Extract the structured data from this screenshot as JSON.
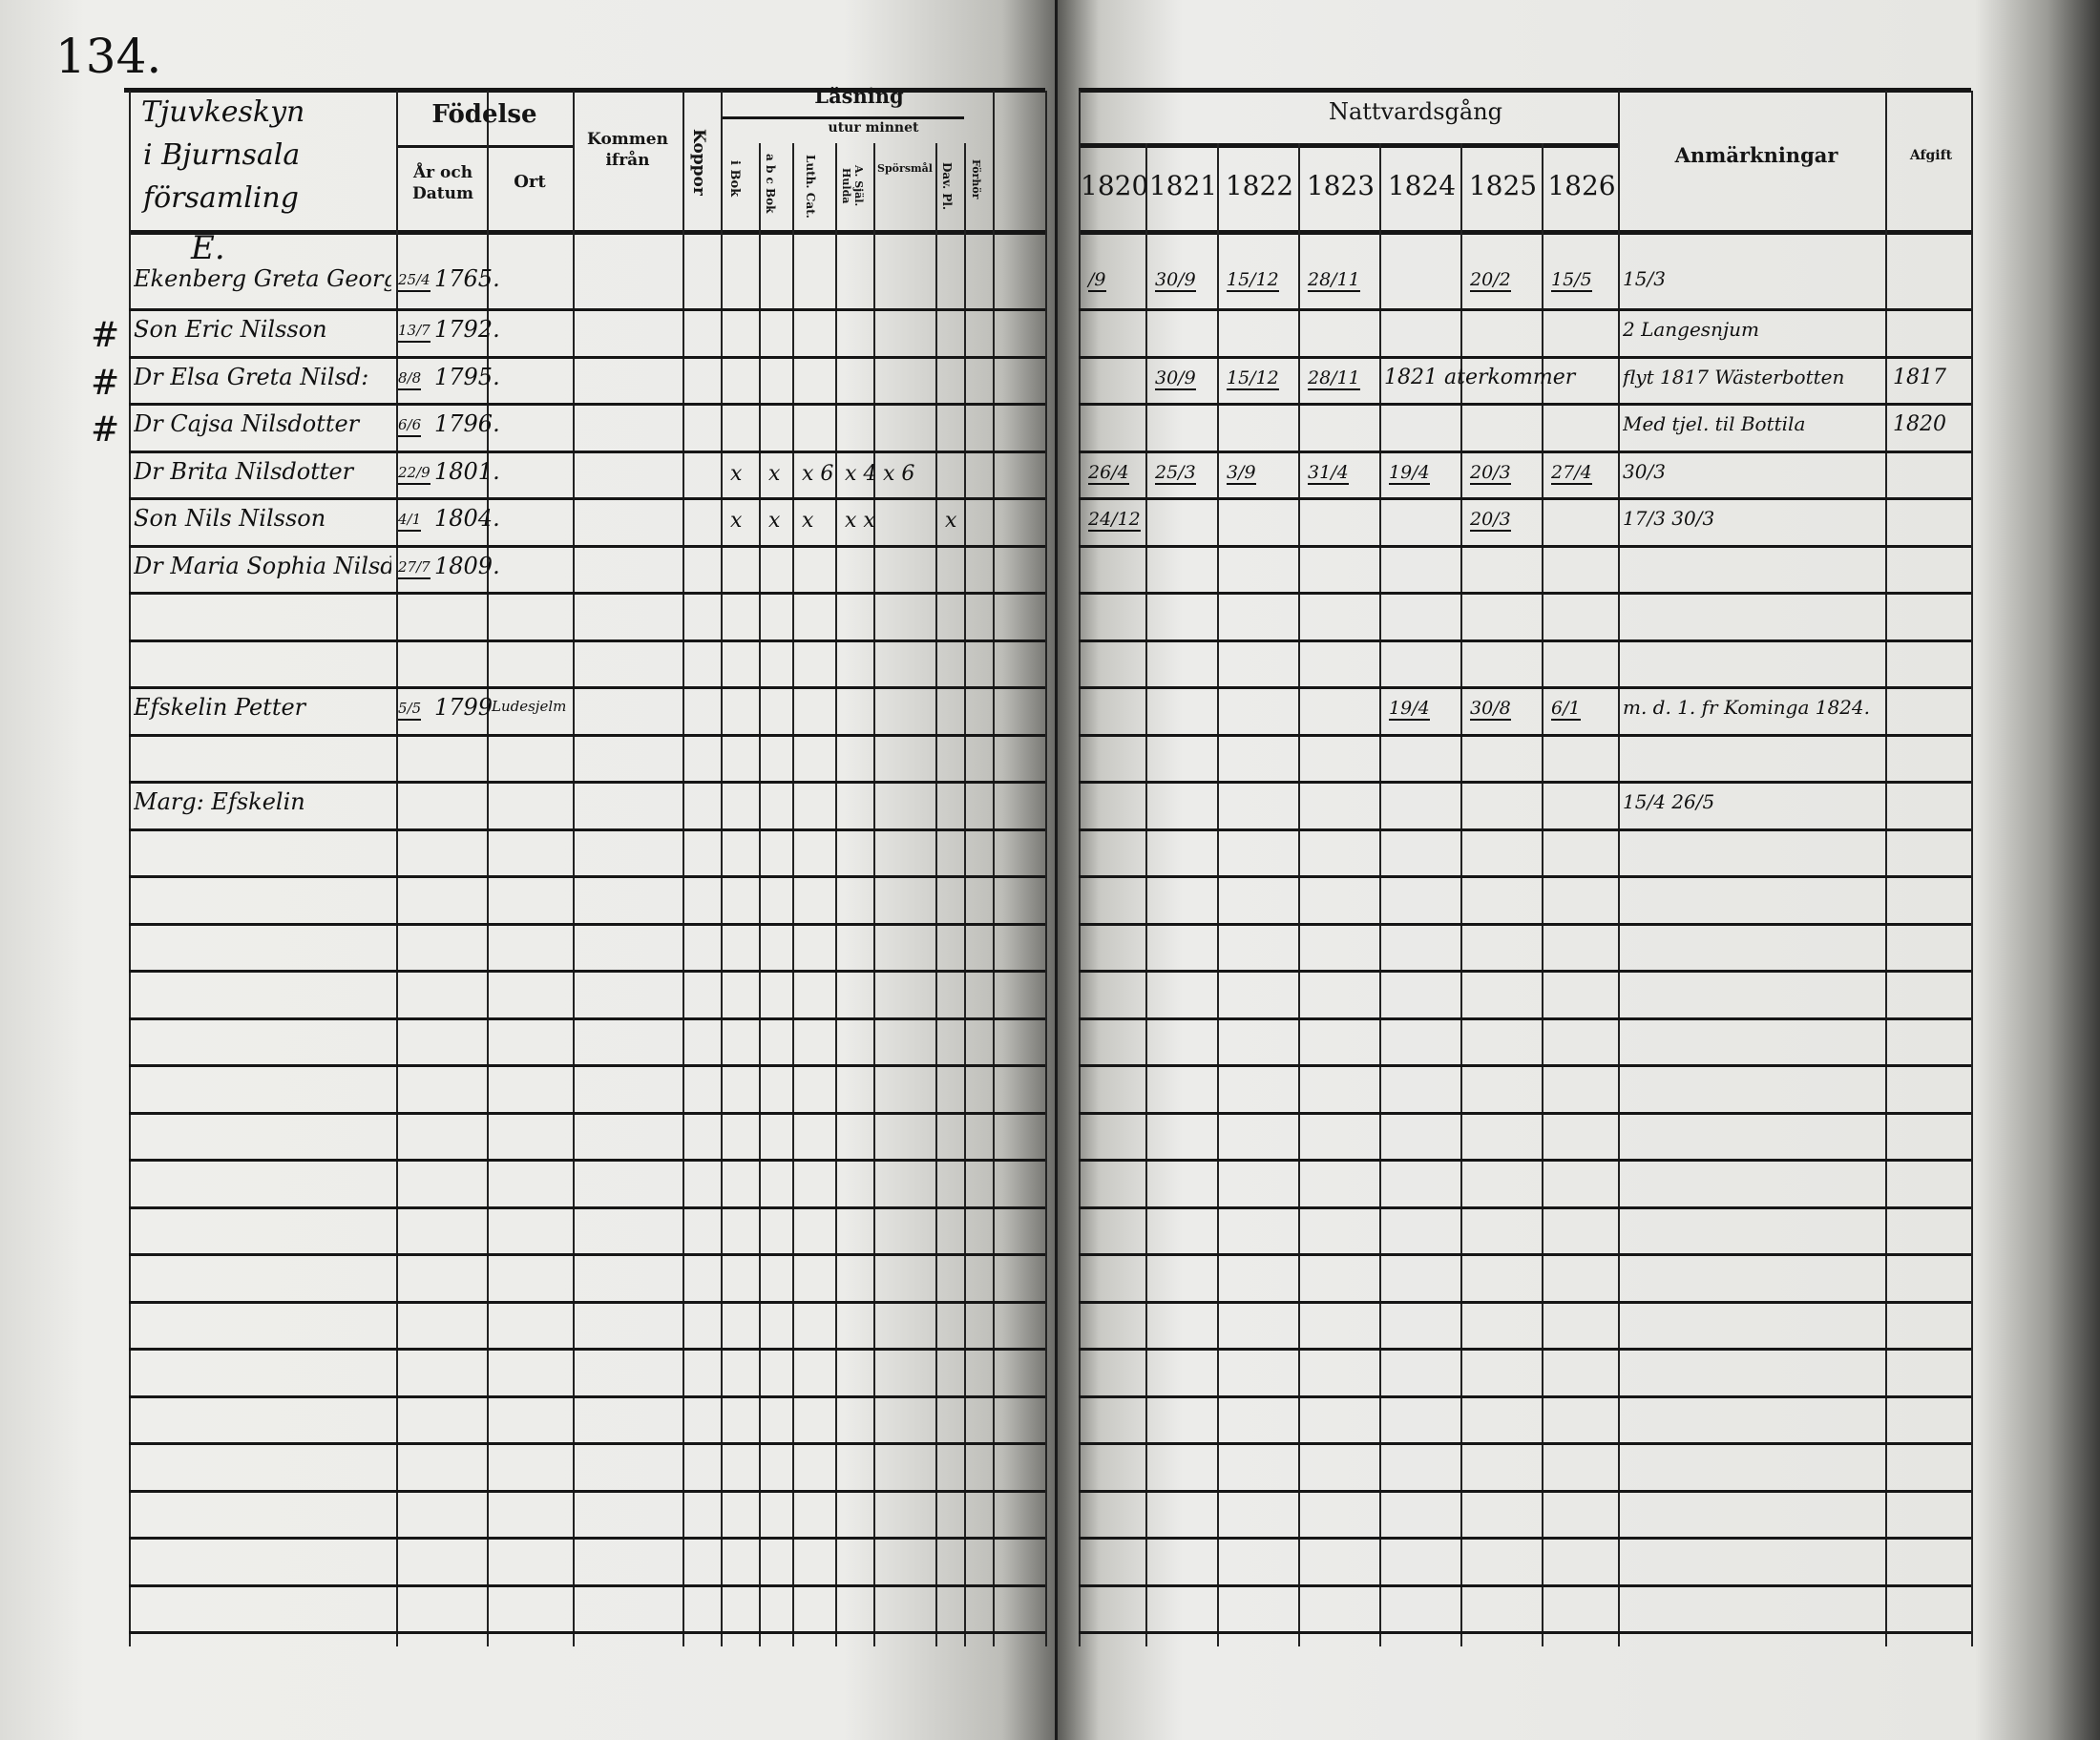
{
  "document": {
    "page_number": "134.",
    "left_page": {
      "parish_heading": [
        "Tjuvkeskyn",
        "i Bjurnsala",
        "församling",
        "E."
      ],
      "headers": {
        "birth": "Födelse",
        "birth_date": "År och Datum",
        "birth_place": "Ort",
        "came_from": "Kommen ifrån",
        "smallpox": "Koppor",
        "reading": "Läsning",
        "by_heart": "utur minnet",
        "in_book": "i Bok",
        "abc_book": "a b c Bok",
        "luth_cat": "Luth. Cat.",
        "a_sjal_hulda": "A. Själ. Hulda",
        "questions": "Spörsmål",
        "dav_pl": "Dav. Pl.",
        "forhor": "Förhör"
      }
    },
    "right_page": {
      "headers": {
        "communion": "Nattvardsgång",
        "years": [
          "1820",
          "1821",
          "1822",
          "1823",
          "1824",
          "1825",
          "1826"
        ],
        "remarks": "Anmärkningar",
        "fee": "Afgift"
      }
    },
    "entries": [
      {
        "mark": "",
        "name": "Ekenberg Greta Georgs Dr",
        "birth_day": "25/4",
        "birth_year": "1765.",
        "reading": [
          "",
          "",
          "",
          "",
          "",
          ""
        ],
        "communion": [
          "/9",
          "30/9",
          "15/12",
          "28/11",
          "",
          "20/2",
          "15/5"
        ],
        "remarks": "15/3",
        "fee": ""
      },
      {
        "mark": "#",
        "name": "Son Eric Nilsson",
        "birth_day": "13/7",
        "birth_year": "1792.",
        "reading": [
          "",
          "",
          "",
          "",
          "",
          ""
        ],
        "communion": [
          "",
          "",
          "",
          "",
          "",
          "",
          ""
        ],
        "remarks": "2 Langesnjum",
        "fee": ""
      },
      {
        "mark": "#",
        "name": "Dr Elsa Greta Nilsd:",
        "birth_day": "8/8",
        "birth_year": "1795.",
        "reading": [
          "",
          "",
          "",
          "",
          "",
          ""
        ],
        "communion": [
          "",
          "30/9",
          "15/12",
          "28/11",
          "1821 aterkommer",
          "",
          ""
        ],
        "remarks": "flyt 1817 Wästerbotten",
        "fee": "1817"
      },
      {
        "mark": "#",
        "name": "Dr Cajsa Nilsdotter",
        "birth_day": "6/6",
        "birth_year": "1796.",
        "reading": [
          "",
          "",
          "",
          "",
          "",
          ""
        ],
        "communion": [
          "",
          "",
          "",
          "",
          "",
          "",
          ""
        ],
        "remarks": "Med tjel. til Bottila",
        "fee": "1820"
      },
      {
        "mark": "",
        "name": "Dr Brita Nilsdotter",
        "birth_day": "22/9",
        "birth_year": "1801.",
        "reading": [
          "x",
          "x",
          "x 6",
          "x 4",
          "x 6",
          ""
        ],
        "communion": [
          "26/4",
          "25/3",
          "3/9",
          "31/4",
          "19/4",
          "20/3",
          "27/4"
        ],
        "remarks": "30/3",
        "fee": ""
      },
      {
        "mark": "",
        "name": "Son Nils Nilsson",
        "birth_day": "4/1",
        "birth_year": "1804.",
        "reading": [
          "x",
          "x",
          "x",
          "x x",
          "",
          "x"
        ],
        "communion": [
          "24/12",
          "",
          "",
          "",
          "",
          "20/3",
          ""
        ],
        "remarks": "17/3 30/3",
        "fee": ""
      },
      {
        "mark": "",
        "name": "Dr Maria Sophia Nilsd:",
        "birth_day": "27/7",
        "birth_year": "1809.",
        "reading": [
          "",
          "",
          "",
          "",
          "",
          ""
        ],
        "communion": [
          "",
          "",
          "",
          "",
          "",
          "",
          ""
        ],
        "remarks": "",
        "fee": ""
      },
      {
        "mark": "",
        "name": "Efskelin Petter",
        "birth_day": "5/5",
        "birth_year": "1799",
        "birth_place": "Ludesjelm",
        "reading": [
          "",
          "",
          "",
          "",
          "",
          ""
        ],
        "communion": [
          "",
          "",
          "",
          "",
          "19/4",
          "30/8",
          "6/1"
        ],
        "remarks": "m. d. 1. fr Kominga 1824.",
        "fee": ""
      },
      {
        "mark": "",
        "name": "Marg: Efskelin",
        "birth_day": "",
        "birth_year": "",
        "reading": [
          "",
          "",
          "",
          "",
          "",
          ""
        ],
        "communion": [
          "",
          "",
          "",
          "",
          "",
          "",
          ""
        ],
        "remarks": "15/4 26/5",
        "fee": ""
      }
    ]
  }
}
